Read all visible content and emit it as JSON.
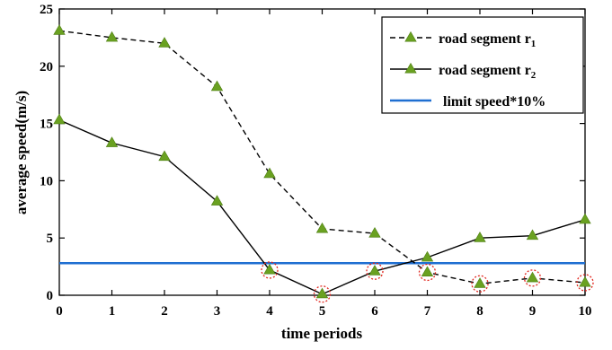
{
  "chart_data": {
    "type": "line",
    "xlabel": "time periods",
    "ylabel": "average speed(m/s)",
    "xlim": [
      0,
      10
    ],
    "ylim": [
      0,
      25
    ],
    "x": [
      0,
      1,
      2,
      3,
      4,
      5,
      6,
      7,
      8,
      9,
      10
    ],
    "xticks": [
      "0",
      "1",
      "2",
      "3",
      "4",
      "5",
      "6",
      "7",
      "8",
      "9",
      "10"
    ],
    "yticks": [
      "0",
      "5",
      "10",
      "15",
      "20",
      "25"
    ],
    "legend_position": "top-right",
    "series": [
      {
        "name": "road segment r",
        "name_subscript": "1",
        "style": "dashed",
        "color": "#000000",
        "marker": "triangle",
        "marker_color": "#6aa121",
        "values": [
          23.1,
          22.5,
          22.0,
          18.2,
          10.6,
          5.8,
          5.4,
          2.0,
          1.0,
          1.5,
          1.1
        ]
      },
      {
        "name": "road segment r",
        "name_subscript": "2",
        "style": "solid",
        "color": "#000000",
        "marker": "triangle",
        "marker_color": "#6aa121",
        "values": [
          15.3,
          13.3,
          12.1,
          8.2,
          2.2,
          0.1,
          2.1,
          3.3,
          5.0,
          5.2,
          6.6
        ]
      }
    ],
    "reference_lines": [
      {
        "name": "limit speed*10%",
        "value": 2.8,
        "color": "#1f6fd1"
      }
    ],
    "highlighted_points": [
      {
        "x": 4,
        "y": 2.2
      },
      {
        "x": 5,
        "y": 0.1
      },
      {
        "x": 6,
        "y": 2.1
      },
      {
        "x": 7,
        "y": 2.0
      },
      {
        "x": 8,
        "y": 1.0
      },
      {
        "x": 9,
        "y": 1.5
      },
      {
        "x": 10,
        "y": 1.1
      }
    ],
    "highlight_color": "#e0261e"
  }
}
